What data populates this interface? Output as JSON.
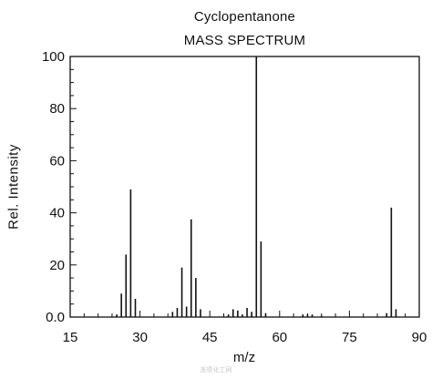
{
  "chart_data": {
    "type": "bar",
    "title": "Cyclopentanone",
    "subtitle": "MASS SPECTRUM",
    "xlabel": "m/z",
    "ylabel": "Rel. Intensity",
    "xlim": [
      15,
      90
    ],
    "ylim": [
      0,
      100
    ],
    "xticks": [
      15,
      30,
      45,
      60,
      75,
      90
    ],
    "yticks": [
      0.0,
      20,
      40,
      60,
      80,
      100
    ],
    "ytick_labels": [
      "0.0",
      "20",
      "40",
      "60",
      "80",
      "100"
    ],
    "grid": false,
    "x": [
      25,
      26,
      27,
      28,
      29,
      37,
      38,
      39,
      40,
      41,
      42,
      43,
      49,
      50,
      51,
      52,
      53,
      54,
      55,
      56,
      57,
      65,
      66,
      67,
      69,
      83,
      84,
      85
    ],
    "values": [
      1,
      9,
      24,
      49,
      7,
      2,
      3.5,
      19,
      4,
      37.5,
      15,
      3,
      1,
      3,
      2.5,
      1,
      3.5,
      2,
      100,
      29,
      1.5,
      1,
      1,
      1,
      0.5,
      1.5,
      42,
      3
    ]
  },
  "watermark": "盖德化工网"
}
